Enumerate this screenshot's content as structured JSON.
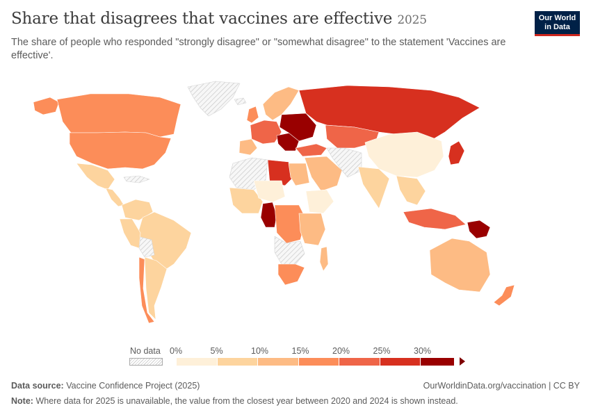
{
  "header": {
    "title": "Share that disagrees that vaccines are effective",
    "year": "2025",
    "subtitle": "The share of people who responded \"strongly disagree\" or \"somewhat disagree\" to the statement 'Vaccines are effective'."
  },
  "logo": {
    "line1": "Our World",
    "line2": "in Data"
  },
  "legend": {
    "no_data_label": "No data",
    "ticks": [
      "0%",
      "5%",
      "10%",
      "15%",
      "20%",
      "25%",
      "30%"
    ],
    "colors": [
      "#fef0d9",
      "#fdd49e",
      "#fdbb84",
      "#fc8d59",
      "#ef6548",
      "#d7301f",
      "#990000"
    ],
    "no_data_color": "#e8e8e8"
  },
  "footer": {
    "source_label": "Data source:",
    "source_text": "Vaccine Confidence Project (2025)",
    "url": "OurWorldinData.org/vaccination | CC BY",
    "note_label": "Note:",
    "note_text": "Where data for 2025 is unavailable, the value from the closest year between 2020 and 2024 is shown instead."
  },
  "chart_data": {
    "type": "map",
    "unit": "%",
    "scale_bins": [
      0,
      5,
      10,
      15,
      20,
      25,
      30
    ],
    "regions": [
      {
        "id": "greenland",
        "bin": "nodata"
      },
      {
        "id": "alaska",
        "bin": 3
      },
      {
        "id": "canada",
        "bin": 3
      },
      {
        "id": "usa",
        "bin": 3
      },
      {
        "id": "mexico",
        "bin": 1
      },
      {
        "id": "central-america",
        "bin": 1
      },
      {
        "id": "caribbean",
        "bin": "nodata"
      },
      {
        "id": "colombia-venezuela",
        "bin": 1
      },
      {
        "id": "brazil",
        "bin": 1
      },
      {
        "id": "peru",
        "bin": 1
      },
      {
        "id": "bolivia",
        "bin": "nodata"
      },
      {
        "id": "chile",
        "bin": 3
      },
      {
        "id": "argentina",
        "bin": 1
      },
      {
        "id": "iceland",
        "bin": "nodata"
      },
      {
        "id": "uk",
        "bin": 3
      },
      {
        "id": "scandinavia",
        "bin": 2
      },
      {
        "id": "western-europe",
        "bin": 4
      },
      {
        "id": "iberia",
        "bin": 2
      },
      {
        "id": "balkans",
        "bin": 6
      },
      {
        "id": "eastern-europe",
        "bin": 6
      },
      {
        "id": "russia",
        "bin": 5
      },
      {
        "id": "kazakhstan",
        "bin": 4
      },
      {
        "id": "turkey",
        "bin": 4
      },
      {
        "id": "middle-east",
        "bin": 2
      },
      {
        "id": "iran-afghanistan",
        "bin": "nodata"
      },
      {
        "id": "china",
        "bin": 0
      },
      {
        "id": "japan",
        "bin": 5
      },
      {
        "id": "india",
        "bin": 1
      },
      {
        "id": "southeast-asia",
        "bin": 1
      },
      {
        "id": "indonesia",
        "bin": 4
      },
      {
        "id": "papua-new-guinea",
        "bin": 6
      },
      {
        "id": "australia",
        "bin": 2
      },
      {
        "id": "new-zealand",
        "bin": 3
      },
      {
        "id": "north-africa-west",
        "bin": "nodata"
      },
      {
        "id": "libya",
        "bin": 5
      },
      {
        "id": "egypt",
        "bin": 2
      },
      {
        "id": "west-africa",
        "bin": 1
      },
      {
        "id": "niger-chad",
        "bin": 0
      },
      {
        "id": "cameroon",
        "bin": 6
      },
      {
        "id": "central-africa",
        "bin": 3
      },
      {
        "id": "ethiopia",
        "bin": 0
      },
      {
        "id": "east-africa",
        "bin": 2
      },
      {
        "id": "southern-africa-nodata",
        "bin": "nodata"
      },
      {
        "id": "south-africa",
        "bin": 3
      },
      {
        "id": "madagascar",
        "bin": 2
      }
    ]
  }
}
